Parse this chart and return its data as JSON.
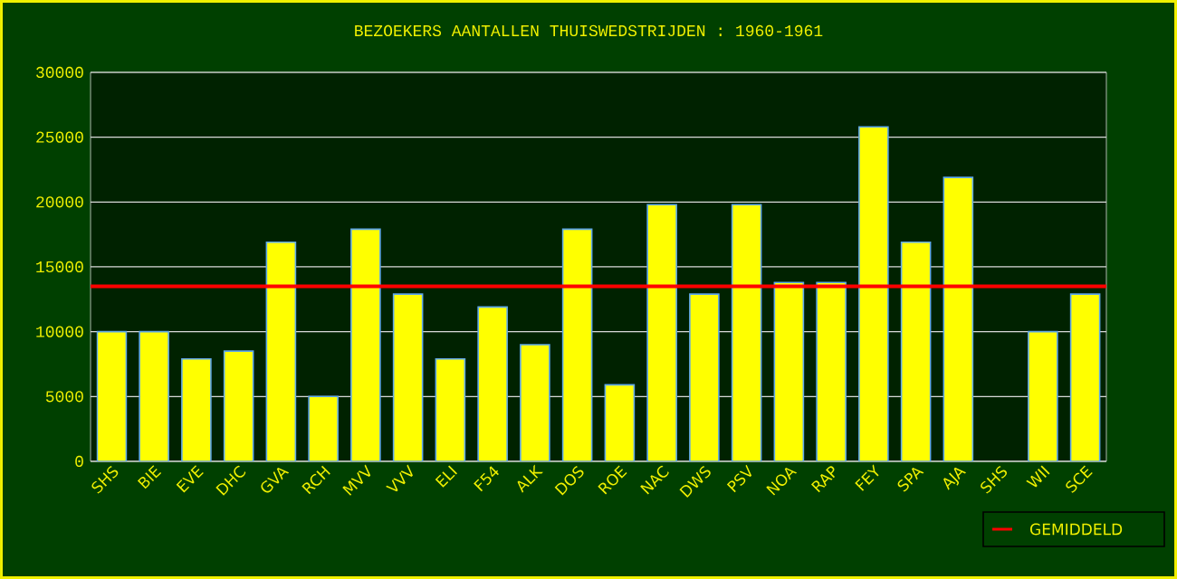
{
  "chart_data": {
    "type": "bar",
    "title": "BEZOEKERS AANTALLEN THUISWEDSTRIJDEN : 1960-1961",
    "categories": [
      "SHS",
      "BIE",
      "EVE",
      "DHC",
      "GVA",
      "RCH",
      "MVV",
      "VVV",
      "ELI",
      "F54",
      "ALK",
      "DOS",
      "ROE",
      "NAC",
      "DWS",
      "PSV",
      "NOA",
      "RAP",
      "FEY",
      "SPA",
      "AJA",
      "SHS",
      "WII",
      "SCE"
    ],
    "values": [
      10000,
      10000,
      7900,
      8500,
      16900,
      5000,
      17900,
      12900,
      7900,
      11900,
      9000,
      17900,
      5900,
      19800,
      12900,
      19800,
      13800,
      13800,
      25800,
      16900,
      21900,
      null,
      10000,
      12900
    ],
    "color": "#ffff00",
    "ylim": [
      0,
      30000
    ],
    "yticks": [
      0,
      5000,
      10000,
      15000,
      20000,
      25000,
      30000
    ],
    "grid": "y",
    "legend": "bottom right",
    "ref_lines": [
      {
        "axis": "y",
        "value": 13500,
        "label": "GEMIDDELD",
        "color": "#ff0000"
      }
    ]
  }
}
